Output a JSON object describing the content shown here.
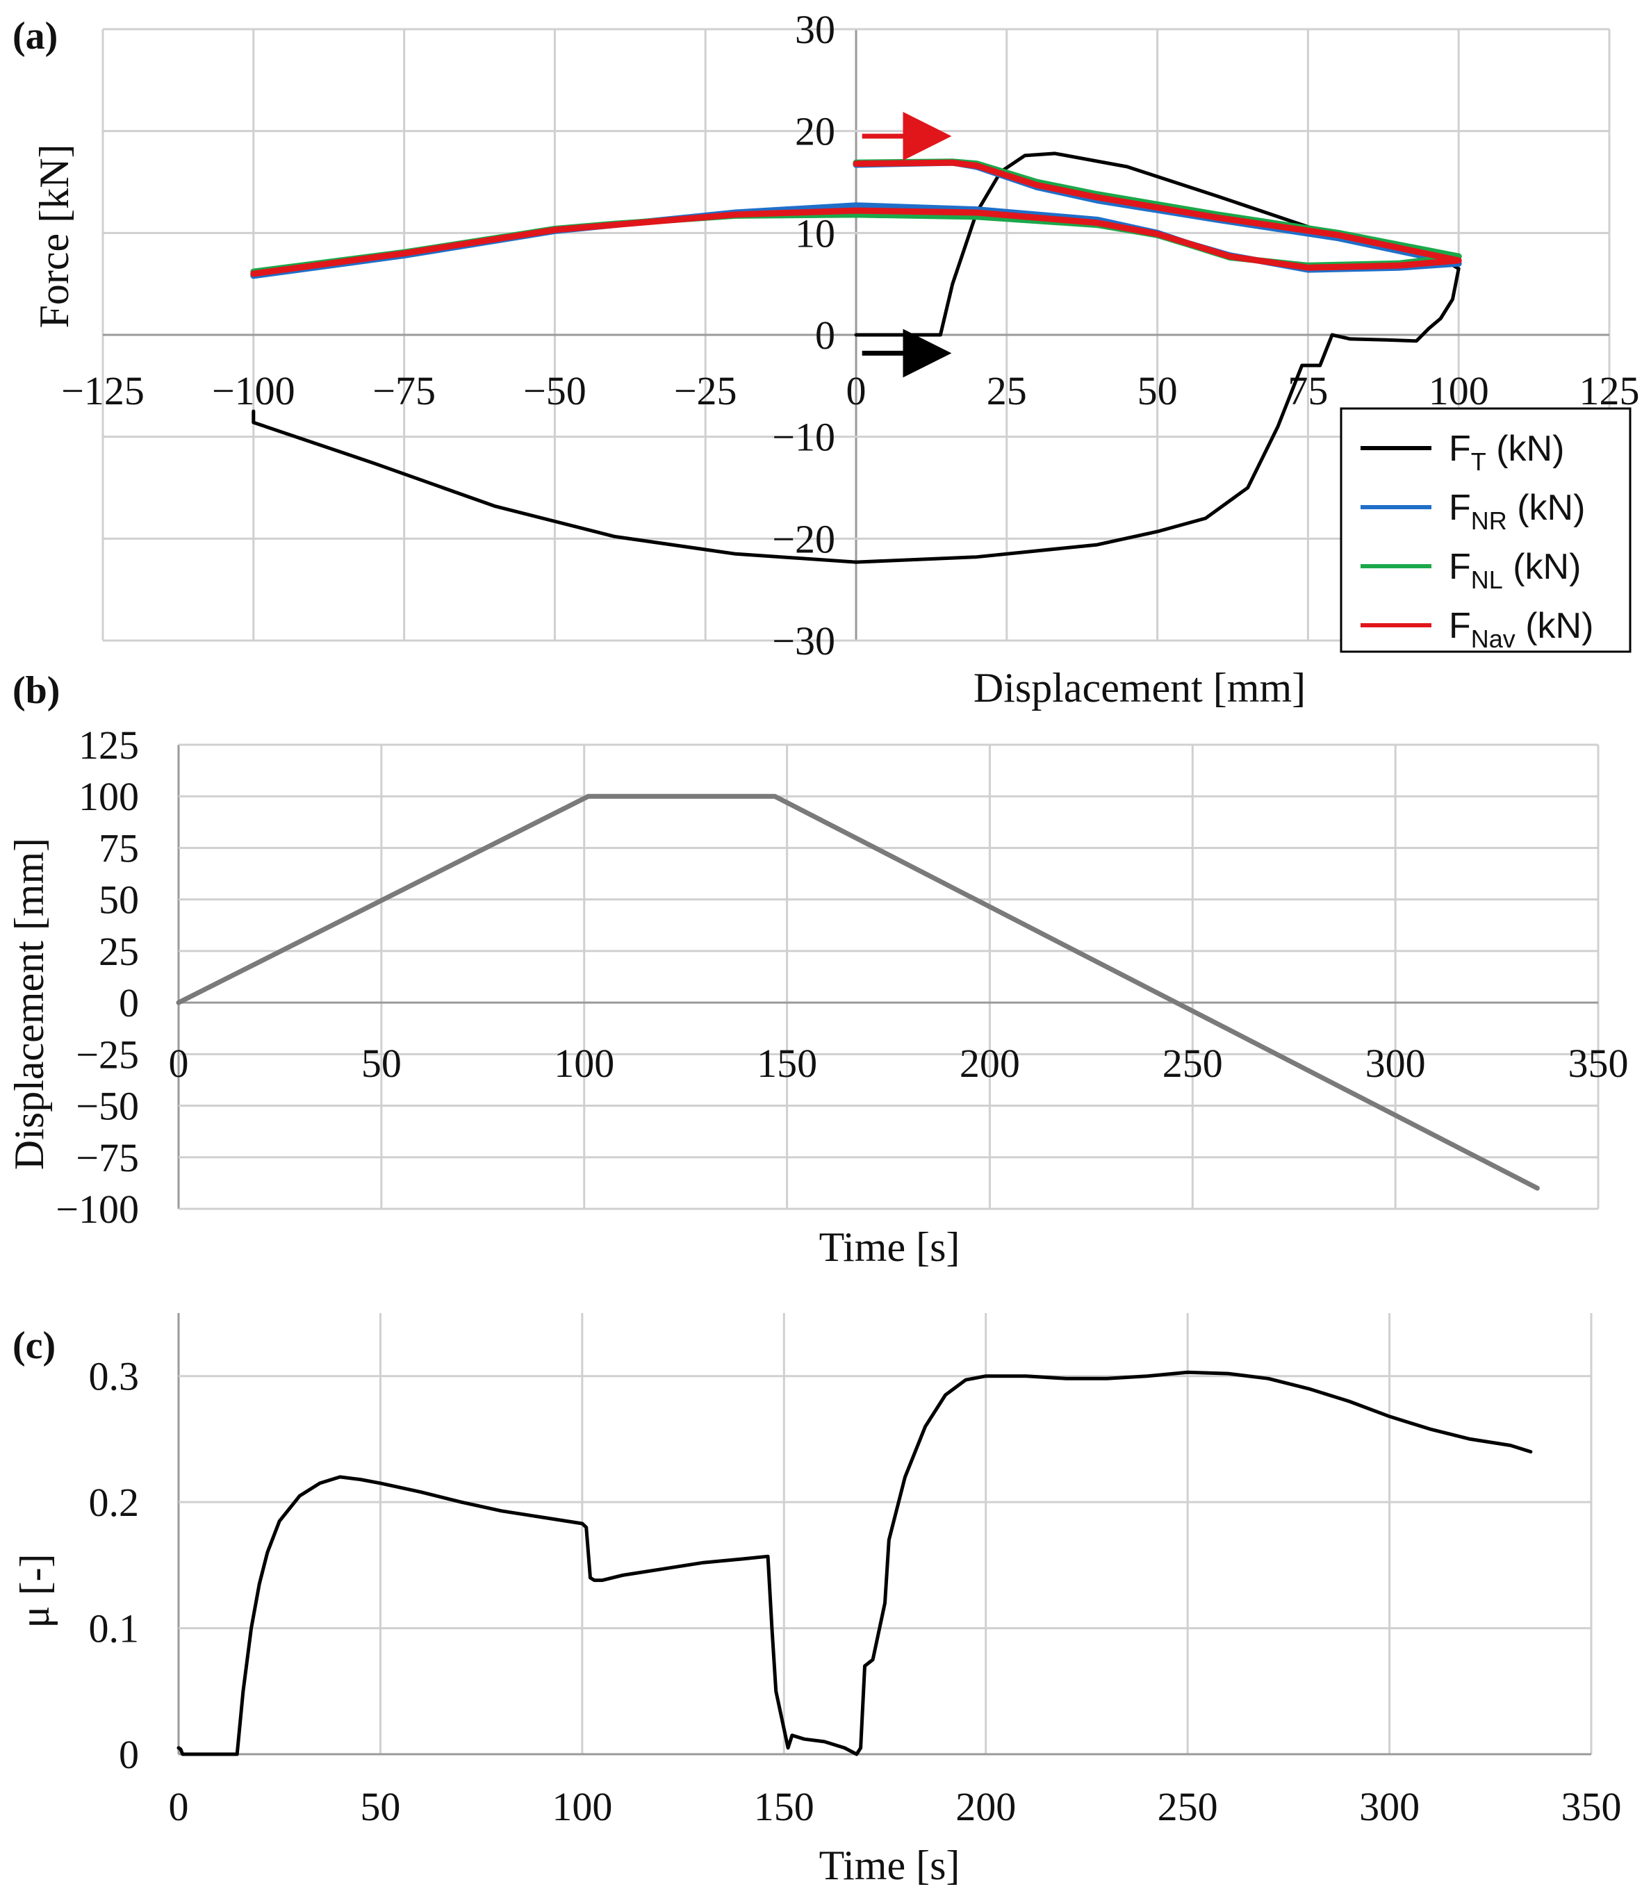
{
  "chart_data": [
    {
      "panel": "(a)",
      "type": "line",
      "xlabel": "Displacement [mm]",
      "ylabel": "Force [kN]",
      "xlim": [
        -125,
        125
      ],
      "ylim": [
        -30,
        30
      ],
      "xticks": [
        -125,
        -100,
        -75,
        -50,
        -25,
        0,
        25,
        50,
        75,
        100,
        125
      ],
      "yticks": [
        -30,
        -20,
        -10,
        0,
        10,
        20,
        30
      ],
      "xtick_labels": [
        "−125",
        "−100",
        "−75",
        "−50",
        "−25",
        "0",
        "25",
        "50",
        "75",
        "100",
        "125"
      ],
      "ytick_labels": [
        "−30",
        "−20",
        "−10",
        "0",
        "10",
        "20",
        "30"
      ],
      "grid": true,
      "legend_position": "right",
      "series": [
        {
          "name": "F_T (kN)",
          "label_main": "F",
          "label_sub": "T",
          "label_rest": " (kN)",
          "color": "#000000",
          "x": [
            0,
            14,
            16,
            20,
            24,
            28,
            33,
            45,
            60,
            75,
            90,
            98,
            100,
            99,
            97,
            95,
            93,
            88,
            82,
            79,
            77,
            74,
            70,
            65,
            58,
            50,
            40,
            20,
            0,
            -20,
            -40,
            -60,
            -80,
            -100,
            -100
          ],
          "y": [
            0,
            0,
            5,
            12,
            16,
            17.6,
            17.8,
            16.5,
            13.6,
            10.6,
            8.4,
            7.2,
            6.5,
            3.5,
            1.6,
            0.6,
            -0.6,
            -0.5,
            -0.4,
            0,
            -3,
            -3,
            -9,
            -15,
            -18,
            -19.3,
            -20.6,
            -21.8,
            -22.3,
            -21.5,
            -19.8,
            -16.8,
            -12.6,
            -8.6,
            -7.5
          ]
        },
        {
          "name": "F_NR (kN)",
          "label_main": "F",
          "label_sub": "NR",
          "label_rest": " (kN)",
          "color": "#1f6fc9",
          "x": [
            0,
            16,
            20,
            30,
            40,
            60,
            80,
            100,
            90,
            75,
            62,
            55,
            50,
            40,
            20,
            0,
            -20,
            -40,
            -50,
            -75,
            -100
          ],
          "y": [
            16.7,
            16.9,
            16.5,
            14.5,
            13.2,
            11.3,
            9.5,
            7,
            6.6,
            6.4,
            7.8,
            9,
            10,
            11.3,
            12.3,
            12.7,
            12,
            10.8,
            10.2,
            7.8,
            5.8
          ]
        },
        {
          "name": "F_NL (kN)",
          "label_main": "F",
          "label_sub": "NL",
          "label_rest": " (kN)",
          "color": "#1aa84a",
          "x": [
            0,
            16,
            20,
            30,
            40,
            60,
            80,
            100,
            90,
            75,
            62,
            55,
            50,
            40,
            20,
            0,
            -20,
            -40,
            -50,
            -75,
            -100
          ],
          "y": [
            16.9,
            17,
            16.8,
            15,
            13.8,
            11.8,
            10,
            7.7,
            7,
            6.8,
            7.6,
            8.9,
            9.8,
            10.8,
            11.6,
            11.8,
            11.7,
            10.9,
            10.4,
            8.1,
            6.2
          ]
        },
        {
          "name": "F_Nav (kN)",
          "label_main": "F",
          "label_sub": "Nav",
          "label_rest": " (kN)",
          "color": "#e0161b",
          "x": [
            0,
            16,
            20,
            30,
            40,
            60,
            80,
            100,
            90,
            75,
            62,
            55,
            50,
            40,
            20,
            0,
            -20,
            -40,
            -50,
            -75,
            -100
          ],
          "y": [
            16.8,
            16.9,
            16.6,
            14.7,
            13.5,
            11.5,
            9.8,
            7.3,
            6.8,
            6.6,
            7.7,
            9,
            9.9,
            11,
            12,
            12.2,
            11.8,
            10.8,
            10.3,
            8,
            6
          ]
        }
      ],
      "annotations": [
        {
          "type": "arrow",
          "color": "#e0161b",
          "x_from": 1,
          "x_to": 11,
          "y": 19.5
        },
        {
          "type": "arrow",
          "color": "#000000",
          "x_from": 1,
          "x_to": 11,
          "y": -1.8
        }
      ]
    },
    {
      "panel": "(b)",
      "type": "line",
      "xlabel": "Time [s]",
      "ylabel": "Displacement [mm]",
      "xlim": [
        0,
        350
      ],
      "ylim": [
        -100,
        125
      ],
      "xticks": [
        0,
        50,
        100,
        150,
        200,
        250,
        300,
        350
      ],
      "yticks": [
        -100,
        -75,
        -50,
        -25,
        0,
        25,
        50,
        75,
        100,
        125
      ],
      "xtick_labels": [
        "0",
        "50",
        "100",
        "150",
        "200",
        "250",
        "300",
        "350"
      ],
      "ytick_labels": [
        "−100",
        "−75",
        "−50",
        "−25",
        "0",
        "25",
        "50",
        "75",
        "100",
        "125"
      ],
      "grid": true,
      "series": [
        {
          "name": "Displacement",
          "color": "#7a7a7a",
          "x": [
            0,
            101,
            147,
            335
          ],
          "y": [
            0,
            100,
            100,
            -90
          ]
        }
      ]
    },
    {
      "panel": "(c)",
      "type": "line",
      "xlabel": "Time [s]",
      "ylabel": "μ [-]",
      "xlim": [
        0,
        350
      ],
      "ylim": [
        0,
        0.35
      ],
      "xticks": [
        0,
        50,
        100,
        150,
        200,
        250,
        300,
        350
      ],
      "yticks": [
        0,
        0.1,
        0.2,
        0.3
      ],
      "xtick_labels": [
        "0",
        "50",
        "100",
        "150",
        "200",
        "250",
        "300",
        "350"
      ],
      "ytick_labels": [
        "0",
        "0.1",
        "0.2",
        "0.3"
      ],
      "grid": true,
      "series": [
        {
          "name": "μ",
          "color": "#000000",
          "x": [
            0,
            0.5,
            1,
            14.5,
            16,
            18,
            20,
            22,
            25,
            30,
            35,
            40,
            45,
            50,
            60,
            70,
            80,
            90,
            100,
            101,
            102,
            103,
            105,
            110,
            120,
            130,
            140,
            146,
            147,
            148,
            150,
            151,
            152,
            155,
            160,
            165,
            168,
            169,
            170,
            172,
            175,
            176,
            180,
            185,
            190,
            195,
            200,
            210,
            220,
            230,
            240,
            250,
            260,
            270,
            280,
            290,
            300,
            310,
            320,
            330,
            335
          ],
          "y": [
            0.005,
            0.004,
            0,
            0,
            0.05,
            0.1,
            0.135,
            0.16,
            0.185,
            0.205,
            0.215,
            0.22,
            0.218,
            0.215,
            0.208,
            0.2,
            0.193,
            0.188,
            0.183,
            0.18,
            0.14,
            0.138,
            0.138,
            0.142,
            0.147,
            0.152,
            0.155,
            0.157,
            0.1,
            0.05,
            0.02,
            0.005,
            0.015,
            0.012,
            0.01,
            0.005,
            0,
            0.005,
            0.07,
            0.075,
            0.12,
            0.17,
            0.22,
            0.26,
            0.285,
            0.297,
            0.3,
            0.3,
            0.298,
            0.298,
            0.3,
            0.303,
            0.302,
            0.298,
            0.29,
            0.28,
            0.268,
            0.258,
            0.25,
            0.245,
            0.24
          ]
        }
      ]
    }
  ]
}
